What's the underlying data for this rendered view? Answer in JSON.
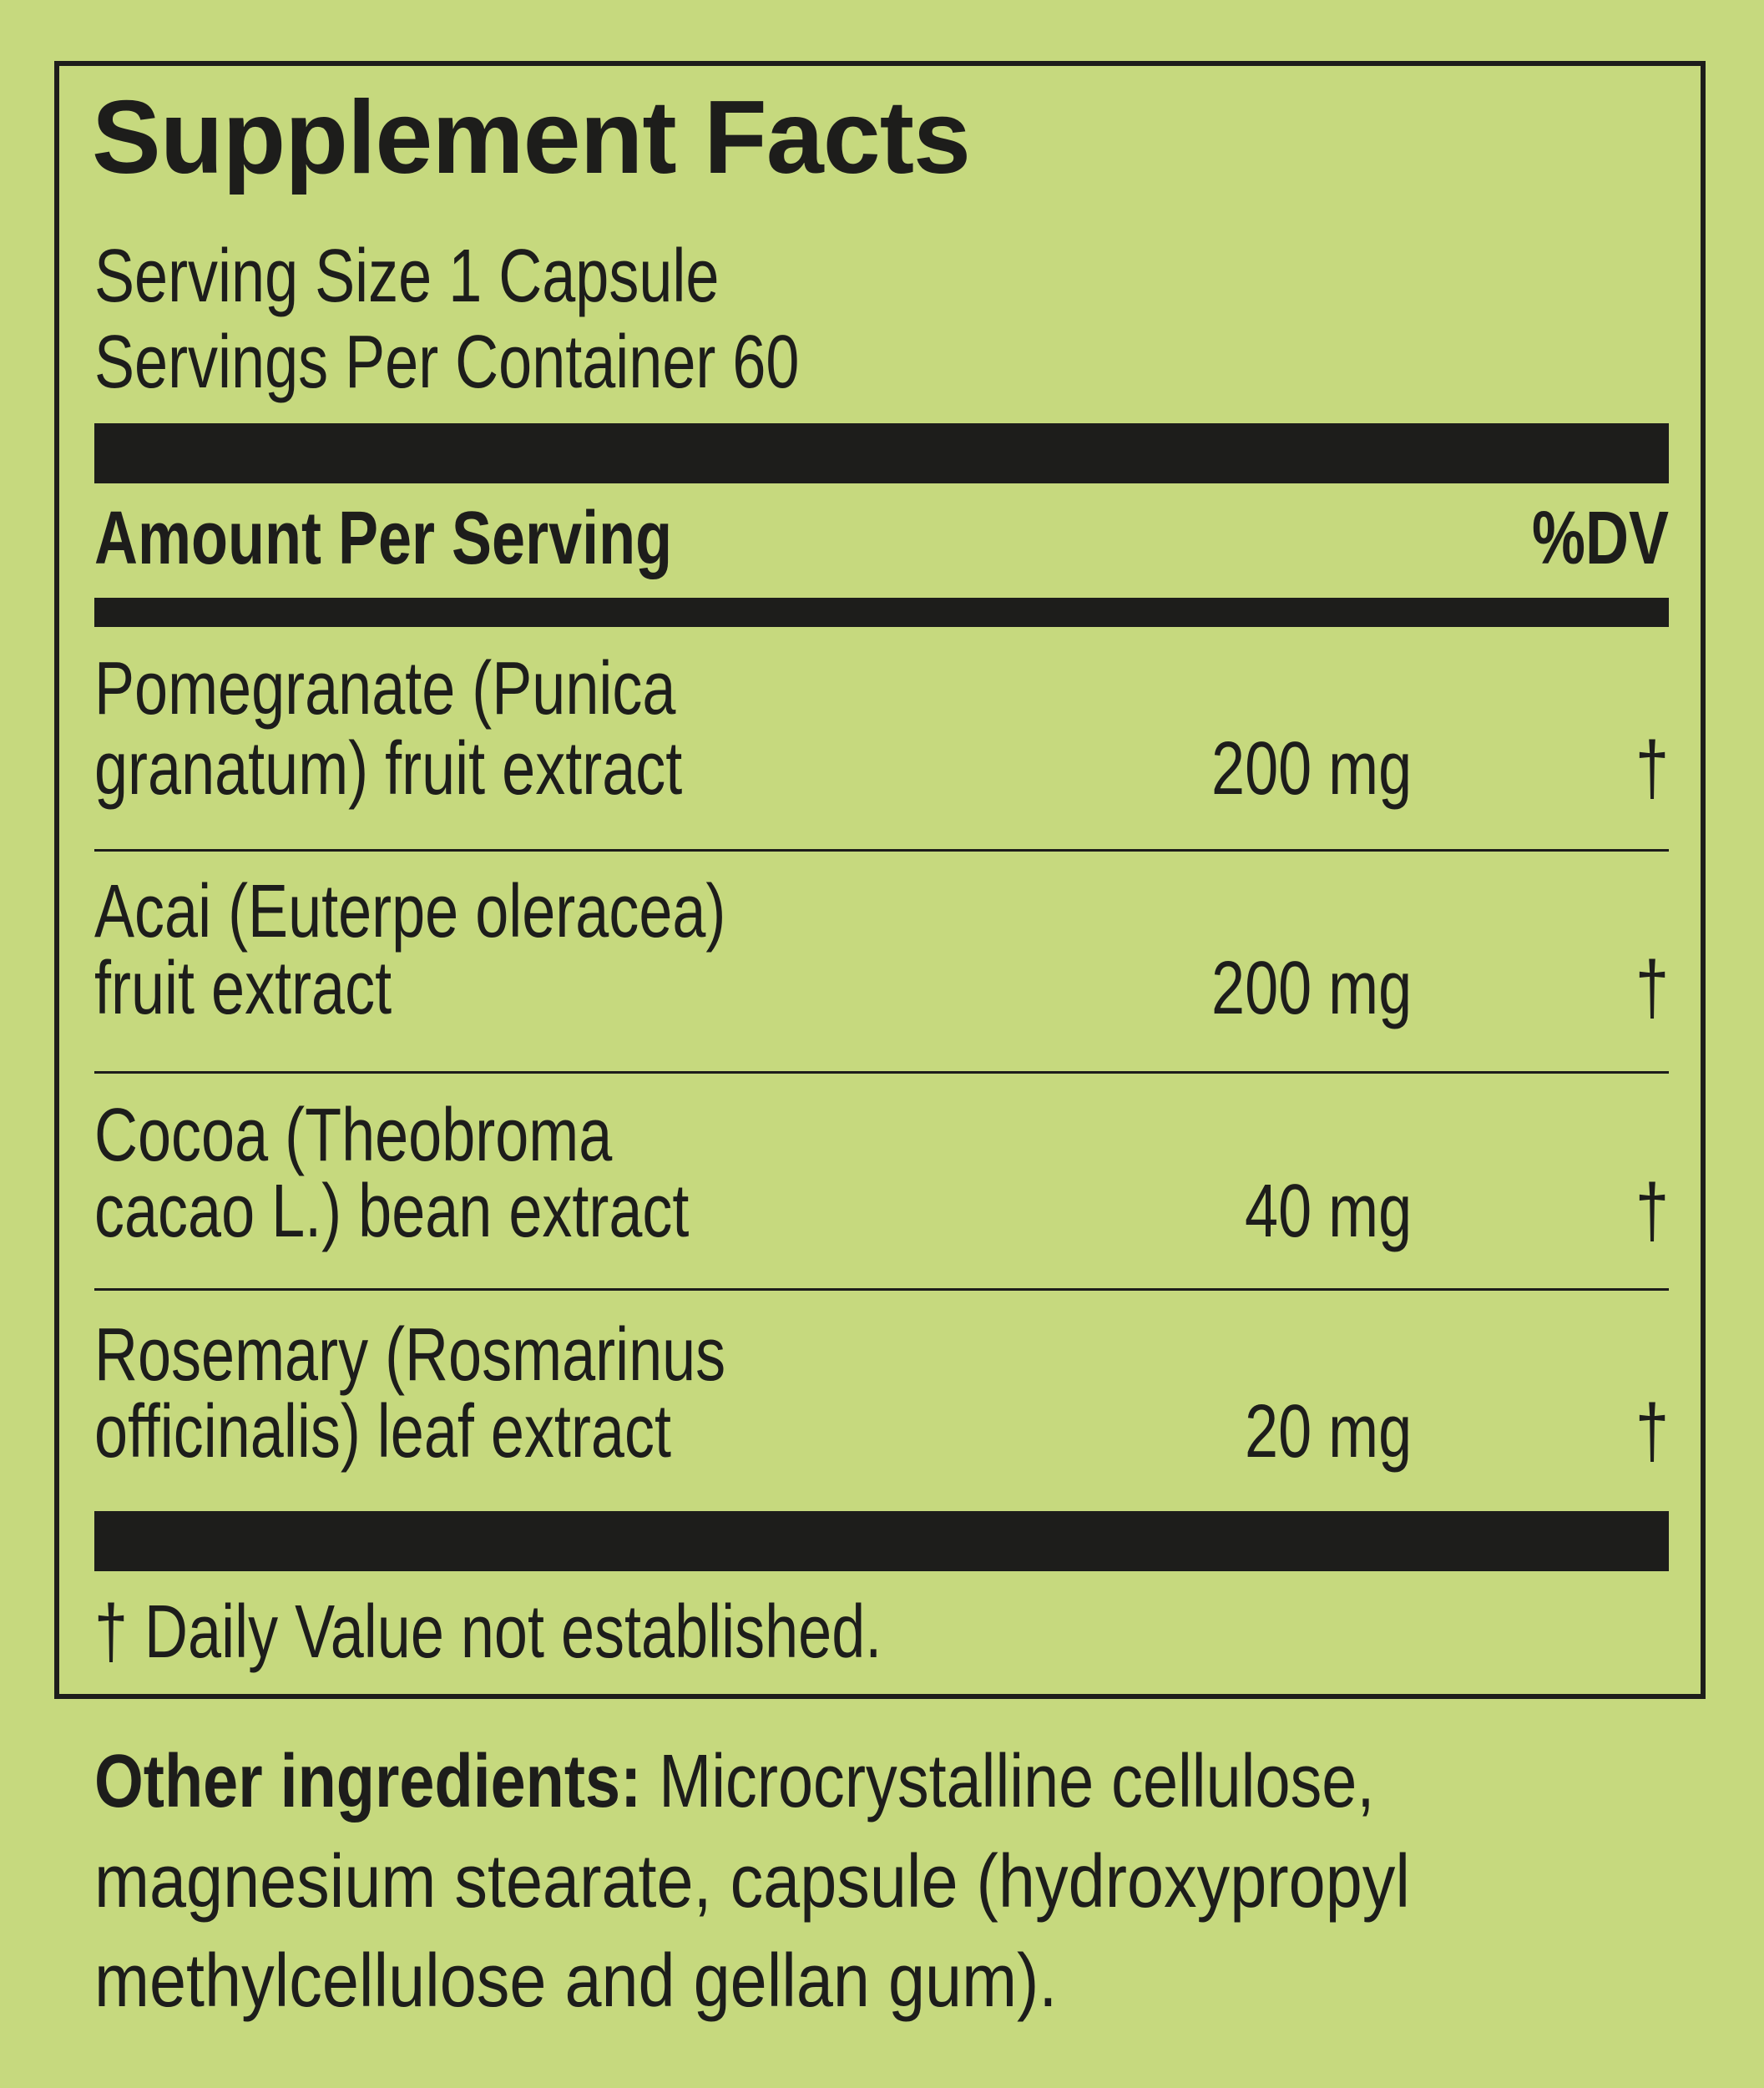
{
  "title": "Supplement Facts",
  "serving_size": "Serving Size 1 Capsule",
  "servings_per_container": "Servings Per Container 60",
  "header": {
    "amount_label": "Amount Per Serving",
    "dv_label": "%DV"
  },
  "ingredients": [
    {
      "line1": "Pomegranate (Punica",
      "line2": "granatum) fruit extract",
      "amount": "200 mg",
      "dv": "†"
    },
    {
      "line1": "Acai (Euterpe oleracea)",
      "line2": "fruit extract",
      "amount": "200 mg",
      "dv": "†"
    },
    {
      "line1": "Cocoa (Theobroma",
      "line2": "cacao L.) bean extract",
      "amount": "40 mg",
      "dv": "†"
    },
    {
      "line1": "Rosemary (Rosmarinus",
      "line2": "officinalis) leaf extract",
      "amount": "20 mg",
      "dv": "†"
    }
  ],
  "footnote": "† Daily Value not established.",
  "other_ingredients": {
    "label": "Other ingredients:",
    "line1": " Microcrystalline cellulose,",
    "line2": "magnesium stearate, capsule (hydroxypropyl",
    "line3": "methylcellulose and gellan gum)."
  },
  "colors": {
    "background": "#c6d97e",
    "ink": "#1d1d1b"
  }
}
